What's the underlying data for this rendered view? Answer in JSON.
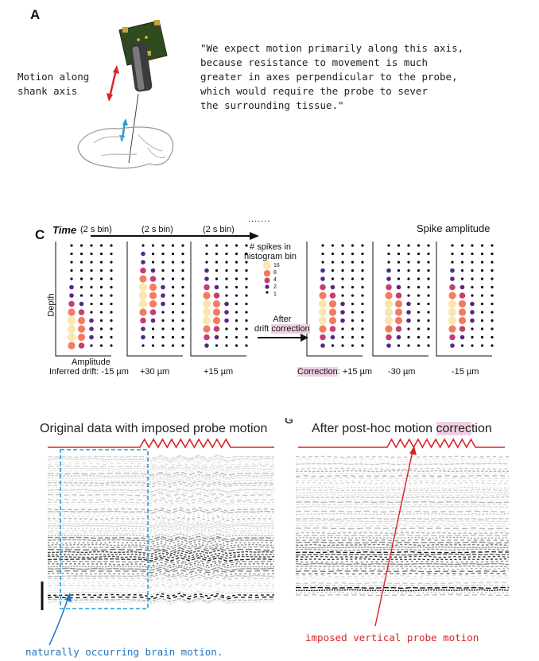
{
  "panel_a": {
    "label": "A",
    "motion_label_line1": "Motion along",
    "motion_label_line2": "shank axis",
    "quote_lines": [
      "\"We expect motion primarily along this axis,",
      "because resistance to movement is much",
      "greater in axes perpendicular to the probe,",
      "which would require the probe to sever",
      "the surrounding tissue.\""
    ]
  },
  "panel_c": {
    "label": "C",
    "time_label": "Time",
    "bin_label": "(2 s bin)",
    "ellipsis": ".......",
    "spike_amplitude_label": "Spike amplitude",
    "depth_label": "Depth",
    "amplitude_label": "Amplitude",
    "legend_title_line1": "# spikes in",
    "legend_title_line2": "histogram bin",
    "legend_values": [
      "16",
      "8",
      "4",
      "2",
      "1"
    ],
    "legend_colors": [
      "#fbe6b0",
      "#f47b63",
      "#c63d73",
      "#5a2583",
      "#0c0a1e"
    ],
    "after_line1": "After",
    "after_line2_pre": "drift ",
    "after_line2_hl": "correction",
    "inferred_drift_prefix": "Inferred drift:",
    "drifts": [
      "-15 µm",
      "+30 µm",
      "+15 µm"
    ],
    "correction_prefix_hl": "Correction",
    "correction_prefix_rest": ":",
    "corrections": [
      "+15 µm",
      "-30 µm",
      "-15 µm"
    ]
  },
  "panel_bottom": {
    "left_title": "Original data with imposed probe motion",
    "right_label_fragment": "G",
    "right_title_pre": "After post-hoc motion ",
    "right_title_hl": "correc",
    "right_title_post": "tion",
    "brain_motion_note": "naturally occurring brain motion.",
    "probe_motion_note": "imposed vertical probe motion",
    "accent_red": "#d8232a",
    "accent_blue": "#1e9fd6"
  }
}
